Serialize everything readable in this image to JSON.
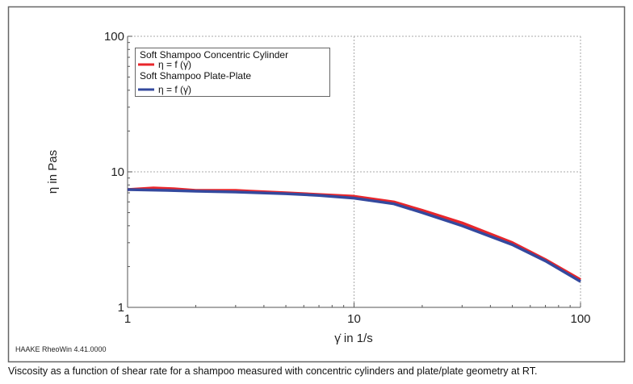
{
  "chart_data": {
    "type": "line",
    "xlabel": "γ̇ in 1/s",
    "ylabel": "η in Pas",
    "x_scale": "log",
    "y_scale": "log",
    "xlim": [
      1,
      100
    ],
    "ylim": [
      1,
      100
    ],
    "x_ticks": [
      "1",
      "10",
      "100"
    ],
    "y_ticks": [
      "1",
      "10",
      "100"
    ],
    "grid": true,
    "legend_placement": "top-left",
    "legend": [
      {
        "title": "Soft Shampoo Concentric Cylinder",
        "label": "η = f (γ̇)",
        "color": "#e8262b"
      },
      {
        "title": "Soft Shampoo Plate-Plate",
        "label": "η = f (γ̇)",
        "color": "#34499e"
      }
    ],
    "series": [
      {
        "name": "Soft Shampoo Concentric Cylinder",
        "color": "#e8262b",
        "x": [
          1,
          1.3,
          1.6,
          2,
          3,
          3.5,
          5,
          7,
          10,
          15,
          20,
          30,
          50,
          70,
          100
        ],
        "y": [
          7.4,
          7.6,
          7.5,
          7.3,
          7.3,
          7.2,
          7.0,
          6.8,
          6.6,
          6.0,
          5.2,
          4.2,
          3.0,
          2.25,
          1.6
        ]
      },
      {
        "name": "Soft Shampoo Plate-Plate",
        "color": "#34499e",
        "x": [
          1,
          1.5,
          2,
          3,
          5,
          7,
          10,
          15,
          20,
          30,
          50,
          70,
          100
        ],
        "y": [
          7.4,
          7.3,
          7.2,
          7.1,
          6.9,
          6.7,
          6.4,
          5.8,
          5.0,
          4.0,
          2.9,
          2.2,
          1.55
        ]
      }
    ]
  },
  "software_label": "HAAKE RheoWin 4.41.0000",
  "caption": "Viscosity as a function of shear rate for a shampoo measured with concentric cylinders and plate/plate geometry at RT."
}
